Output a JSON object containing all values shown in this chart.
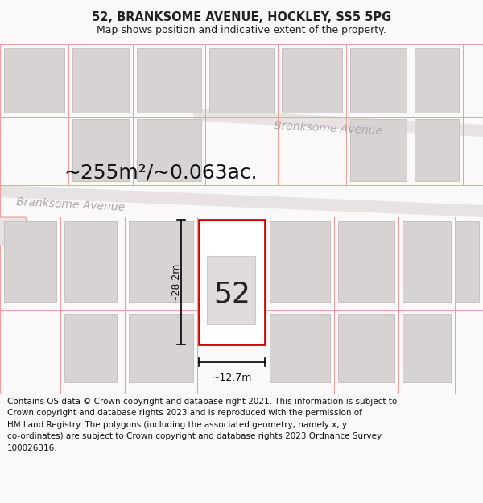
{
  "title": "52, BRANKSOME AVENUE, HOCKLEY, SS5 5PG",
  "subtitle": "Map shows position and indicative extent of the property.",
  "area_text": "~255m²/~0.063ac.",
  "house_number": "52",
  "dim_width": "~12.7m",
  "dim_height": "~28.2m",
  "street_name_1": "Branksome Avenue",
  "street_name_2": "Branksome Avenue",
  "footer_line1": "Contains OS data © Crown copyright and database right 2021. This information is subject to",
  "footer_line2": "Crown copyright and database rights 2023 and is reproduced with the permission of",
  "footer_line3": "HM Land Registry. The polygons (including the associated geometry, namely x, y",
  "footer_line4": "co-ordinates) are subject to Crown copyright and database rights 2023 Ordnance Survey",
  "footer_line5": "100026316.",
  "title_fontsize": 10.5,
  "subtitle_fontsize": 9.0,
  "area_fontsize": 18,
  "number_fontsize": 26,
  "street_fontsize": 10,
  "footer_fontsize": 7.5,
  "map_bg": "#faf8f8",
  "plot_ec": "#dd0000",
  "plot_fc": "#ffffff",
  "bldg_fc": "#d8d3d3",
  "bldg_ec": "#c8c2c2",
  "lot_line_color": "#e8a0a0",
  "road_fc": "#e8e2e2",
  "road_ec": "#d5cdcd",
  "street_color": "#b0a8a8",
  "area_color": "#111111",
  "dim_color": "#111111",
  "title_color": "#222222",
  "footer_color": "#111111",
  "footer_bg": "#ffffff",
  "fig_bg": "#faf8f8"
}
